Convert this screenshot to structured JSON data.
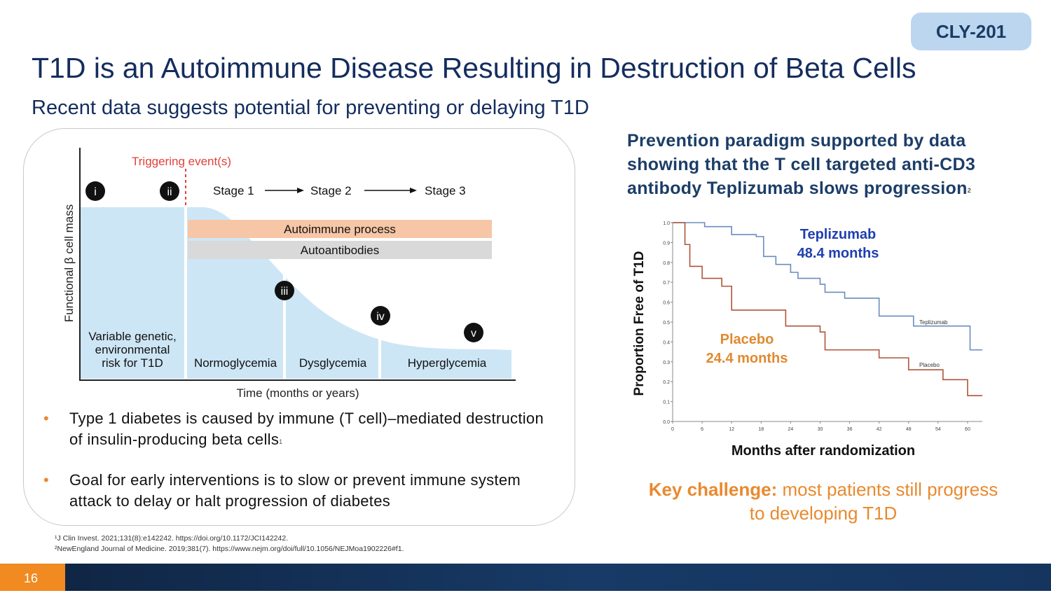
{
  "badge": "CLY-201",
  "title": "T1D is an Autoimmune Disease Resulting in Destruction of Beta Cells",
  "subtitle": "Recent data suggests potential for preventing or delaying T1D",
  "diagram": {
    "trigger_label": "Triggering event(s)",
    "stage1": "Stage 1",
    "stage2": "Stage 2",
    "stage3": "Stage 3",
    "autoimmune_label": "Autoimmune process",
    "autoantibodies_label": "Autoantibodies",
    "y_axis_label": "Functional β cell mass",
    "x_axis_label": "Time (months or years)",
    "markers": [
      "i",
      "ii",
      "iii",
      "iv",
      "v"
    ],
    "zone_genetic": [
      "Variable genetic,",
      "environmental",
      "risk for T1D"
    ],
    "zone_normo": "Normoglycemia",
    "zone_dysgly": "Dysglycemia",
    "zone_hyper": "Hyperglycemia"
  },
  "bullets": [
    {
      "text": "Type 1 diabetes is caused by immune (T cell)–mediated destruction of insulin-producing beta cells",
      "sup": "1"
    },
    {
      "text": "Goal for early interventions is to slow or prevent immune system attack to delay or halt progression of diabetes",
      "sup": ""
    }
  ],
  "references": [
    "¹J Clin Invest. 2021;131(8):e142242. https://doi.org/10.1172/JCI142242.",
    "²NewEngland Journal of Medicine. 2019;381(7). https://www.nejm.org/doi/full/10.1056/NEJMoa1902226#f1."
  ],
  "prevention_text": "Prevention paradigm supported by data showing that the T cell targeted anti-CD3 antibody Teplizumab slows progression",
  "prevention_sup": "2",
  "km_chart": {
    "y_label": "Proportion Free of T1D",
    "x_label": "Months after randomization",
    "teplizumab_label": "Teplizumab",
    "teplizumab_months": "48.4 months",
    "placebo_label": "Placebo",
    "placebo_months": "24.4 months",
    "teplizumab_small": "Teplizumab",
    "placebo_small": "Placebo"
  },
  "chart_data": {
    "type": "line",
    "title": "",
    "xlabel": "Months after randomization",
    "ylabel": "Proportion Free of T1D",
    "xlim": [
      0,
      63
    ],
    "ylim": [
      0,
      1.0
    ],
    "x_ticks": [
      "0",
      "6",
      "12",
      "18",
      "24",
      "30",
      "36",
      "42",
      "48",
      "54",
      "60"
    ],
    "y_ticks": [
      "0.0",
      "0.1",
      "0.2",
      "0.3",
      "0.4",
      "0.5",
      "0.6",
      "0.7",
      "0.8",
      "0.9",
      "1.0"
    ],
    "series": [
      {
        "name": "Teplizumab",
        "color": "#6a8bc0",
        "steps": [
          [
            0,
            1.0
          ],
          [
            6.5,
            0.98
          ],
          [
            12,
            0.94
          ],
          [
            17,
            0.93
          ],
          [
            18.5,
            0.83
          ],
          [
            21,
            0.79
          ],
          [
            24,
            0.75
          ],
          [
            25.5,
            0.72
          ],
          [
            30,
            0.69
          ],
          [
            31,
            0.65
          ],
          [
            35,
            0.62
          ],
          [
            41,
            0.62
          ],
          [
            42,
            0.53
          ],
          [
            48,
            0.53
          ],
          [
            49,
            0.48
          ],
          [
            60,
            0.48
          ],
          [
            60.5,
            0.36
          ],
          [
            63,
            0.36
          ]
        ]
      },
      {
        "name": "Placebo",
        "color": "#b0543a",
        "steps": [
          [
            0,
            1.0
          ],
          [
            2.5,
            0.89
          ],
          [
            3.5,
            0.78
          ],
          [
            6,
            0.72
          ],
          [
            10,
            0.68
          ],
          [
            12,
            0.56
          ],
          [
            16,
            0.56
          ],
          [
            23,
            0.48
          ],
          [
            30,
            0.45
          ],
          [
            31,
            0.36
          ],
          [
            36,
            0.36
          ],
          [
            42,
            0.32
          ],
          [
            47,
            0.32
          ],
          [
            48,
            0.26
          ],
          [
            55,
            0.21
          ],
          [
            60,
            0.13
          ],
          [
            63,
            0.13
          ]
        ]
      }
    ],
    "medians": {
      "Teplizumab": "48.4 months",
      "Placebo": "24.4 months"
    }
  },
  "key_challenge": {
    "bold": "Key challenge:",
    "rest": "most patients still progress to developing T1D"
  },
  "page_number": "16",
  "colors": {
    "accent_orange": "#e88a2f",
    "navy": "#142d5e",
    "badge_bg": "#bcd6ef",
    "diagram_fill": "#cde6f5"
  }
}
